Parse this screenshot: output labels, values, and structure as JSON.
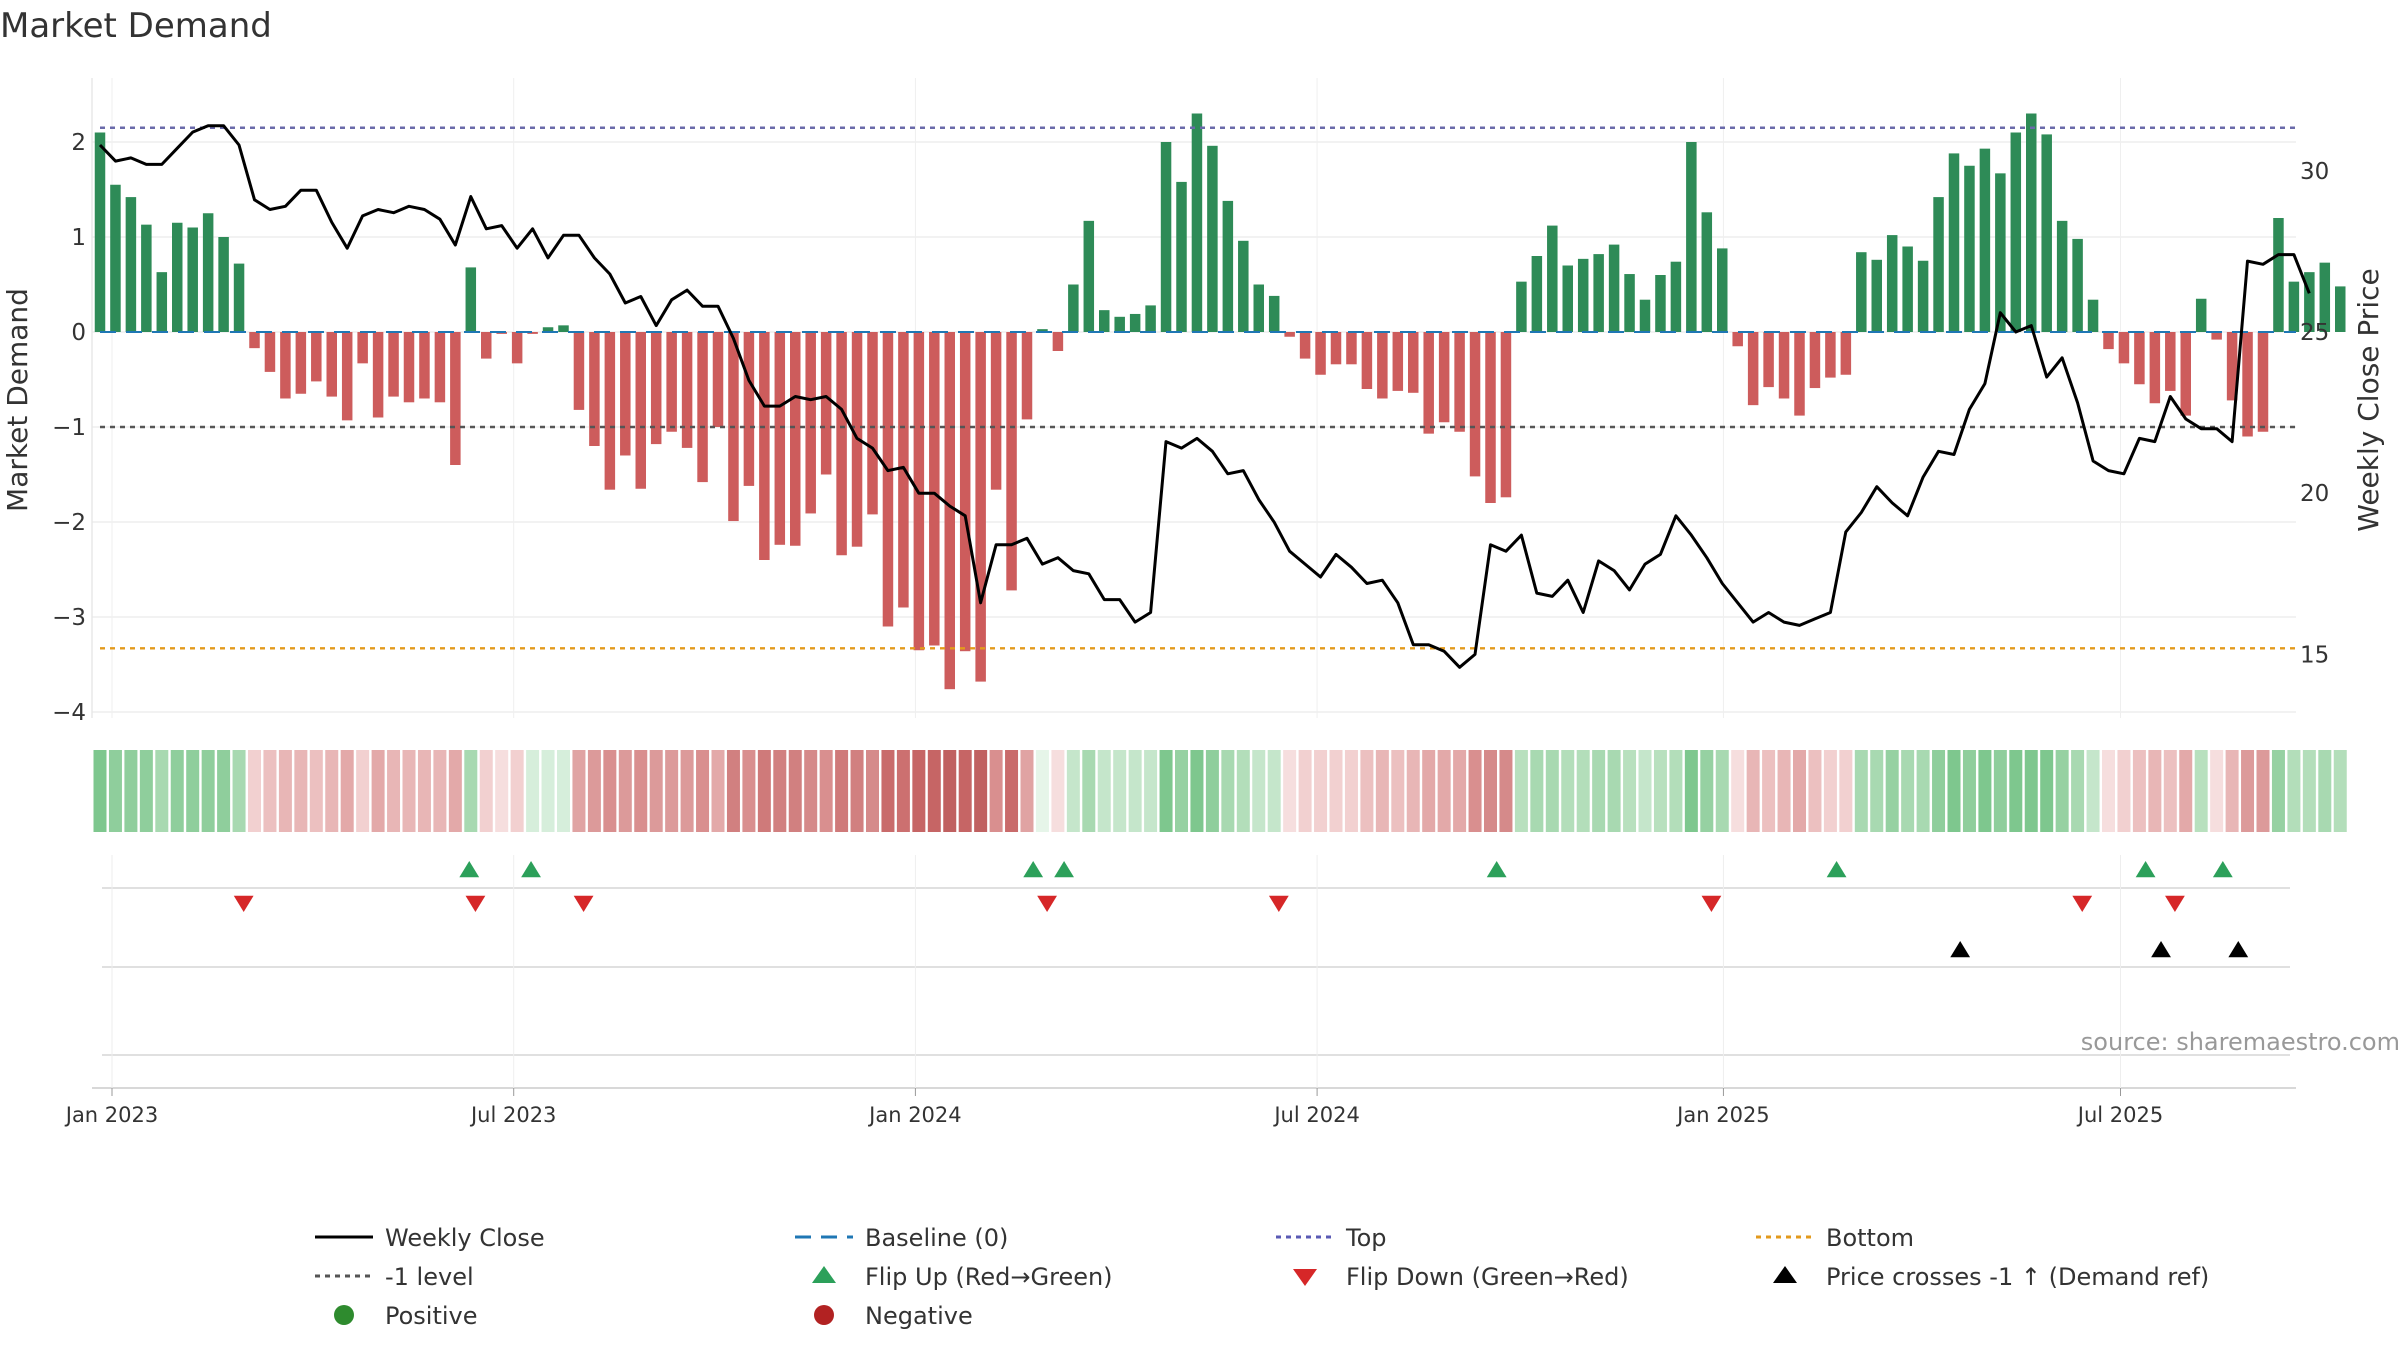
{
  "chart_data": {
    "type": "bar+line",
    "title": "Market Demand",
    "ylabel": "Market Demand",
    "y2label": "Weekly Close Price",
    "ylim": [
      -4.2,
      2.55
    ],
    "y2lim": [
      13.2,
      32.8
    ],
    "yticks": [
      {
        "v": 2,
        "label": "2"
      },
      {
        "v": 1,
        "label": "1"
      },
      {
        "v": 0,
        "label": "0"
      },
      {
        "v": -1,
        "label": "−1"
      },
      {
        "v": -2,
        "label": "−2"
      },
      {
        "v": -3,
        "label": "−3"
      },
      {
        "v": -4,
        "label": "−4"
      }
    ],
    "y2ticks": [
      {
        "v": 30,
        "label": "30"
      },
      {
        "v": 25,
        "label": "25"
      },
      {
        "v": 20,
        "label": "20"
      },
      {
        "v": 15,
        "label": "15"
      }
    ],
    "xticks": [
      {
        "week": 0,
        "label": "Jan 2023"
      },
      {
        "week": 26,
        "label": "Jul 2023"
      },
      {
        "week": 52,
        "label": "Jan 2024"
      },
      {
        "week": 78,
        "label": "Jul 2024"
      },
      {
        "week": 104.3,
        "label": "Jan 2025"
      },
      {
        "week": 130,
        "label": "Jul 2025"
      }
    ],
    "reference_lines": {
      "baseline": 0,
      "minus_one_level": -1,
      "top": 2.15,
      "bottom": -3.33
    },
    "demand": [
      2.1,
      1.55,
      1.42,
      1.13,
      0.63,
      1.15,
      1.1,
      1.25,
      1.0,
      0.72,
      -0.17,
      -0.42,
      -0.7,
      -0.65,
      -0.52,
      -0.68,
      -0.93,
      -0.33,
      -0.9,
      -0.68,
      -0.74,
      -0.7,
      -0.74,
      -1.4,
      0.68,
      -0.28,
      -0.02,
      -0.33,
      -0.02,
      0.05,
      0.07,
      -0.82,
      -1.2,
      -1.66,
      -1.3,
      -1.65,
      -1.18,
      -1.05,
      -1.22,
      -1.58,
      -1.0,
      -1.99,
      -1.62,
      -2.4,
      -2.24,
      -2.25,
      -1.91,
      -1.5,
      -2.35,
      -2.26,
      -1.92,
      -3.1,
      -2.9,
      -3.35,
      -3.3,
      -3.76,
      -3.36,
      -3.68,
      -1.66,
      -2.72,
      -0.92,
      0.03,
      -0.2,
      0.5,
      1.17,
      0.23,
      0.16,
      0.19,
      0.28,
      2.0,
      1.58,
      2.3,
      1.96,
      1.38,
      0.96,
      0.5,
      0.38,
      -0.05,
      -0.28,
      -0.45,
      -0.34,
      -0.34,
      -0.6,
      -0.7,
      -0.62,
      -0.64,
      -1.07,
      -0.95,
      -1.05,
      -1.52,
      -1.8,
      -1.74,
      0.53,
      0.8,
      1.12,
      0.7,
      0.77,
      0.82,
      0.92,
      0.61,
      0.34,
      0.6,
      0.74,
      2.0,
      1.26,
      0.88,
      -0.15,
      -0.77,
      -0.58,
      -0.7,
      -0.88,
      -0.59,
      -0.48,
      -0.45,
      0.84,
      0.76,
      1.02,
      0.9,
      0.75,
      1.42,
      1.88,
      1.75,
      1.93,
      1.67,
      2.1,
      2.3,
      2.08,
      1.17,
      0.98,
      0.34,
      -0.18,
      -0.33,
      -0.55,
      -0.75,
      -0.62,
      -0.88,
      0.35,
      -0.08,
      -0.72,
      -1.1,
      -1.05,
      1.2,
      0.53,
      0.63,
      0.73,
      0.48
    ],
    "price_series": [
      30.8,
      30.3,
      30.4,
      30.2,
      30.2,
      30.7,
      31.2,
      31.4,
      31.4,
      30.8,
      29.1,
      28.8,
      28.9,
      29.4,
      29.4,
      28.4,
      27.6,
      28.6,
      28.8,
      28.7,
      28.9,
      28.8,
      28.5,
      27.7,
      29.2,
      28.2,
      28.3,
      27.6,
      28.2,
      27.3,
      28.0,
      28.0,
      27.3,
      26.8,
      25.9,
      26.1,
      25.2,
      26.0,
      26.3,
      25.8,
      25.8,
      24.8,
      23.5,
      22.7,
      22.7,
      23.0,
      22.9,
      23.0,
      22.6,
      21.7,
      21.4,
      20.7,
      20.8,
      20.0,
      20.0,
      19.6,
      19.3,
      16.6,
      18.4,
      18.4,
      18.6,
      17.8,
      18.0,
      17.6,
      17.5,
      16.7,
      16.7,
      16.0,
      16.3,
      21.6,
      21.4,
      21.7,
      21.3,
      20.6,
      20.7,
      19.8,
      19.1,
      18.2,
      17.8,
      17.4,
      18.1,
      17.7,
      17.2,
      17.3,
      16.6,
      15.3,
      15.3,
      15.1,
      14.6,
      15.0,
      18.4,
      18.2,
      18.7,
      16.9,
      16.8,
      17.3,
      16.3,
      17.9,
      17.6,
      17.0,
      17.8,
      18.1,
      19.3,
      18.7,
      18.0,
      17.2,
      16.6,
      16.0,
      16.3,
      16.0,
      15.9,
      16.1,
      16.3,
      18.8,
      19.4,
      20.2,
      19.7,
      19.3,
      20.5,
      21.3,
      21.2,
      22.6,
      23.4,
      25.6,
      25.0,
      25.2,
      23.6,
      24.2,
      22.8,
      21.0,
      20.7,
      20.6,
      21.7,
      21.6,
      23.0,
      22.3,
      22.0,
      22.0,
      21.6,
      27.2,
      27.1,
      27.4,
      27.4,
      26.2
    ],
    "strip_colors": [
      "#7ec78e",
      "#8fce9c",
      "#8fce9c",
      "#8fce9c",
      "#a8d9b1",
      "#8fce9c",
      "#8fce9c",
      "#8fce9c",
      "#8fce9c",
      "#a8d9b1",
      "#f2d0d0",
      "#ecc0c0",
      "#e8b6b6",
      "#e8b6b6",
      "#ecc0c0",
      "#e8b6b6",
      "#e3a9a9",
      "#f2d0d0",
      "#e3a9a9",
      "#e8b6b6",
      "#e8b6b6",
      "#e8b6b6",
      "#e8b6b6",
      "#e3a9a9",
      "#a8d9b1",
      "#f2d0d0",
      "#f6dede",
      "#f2d0d0",
      "#d6eedb",
      "#d6eedb",
      "#d6eedb",
      "#e0a3a3",
      "#dc9a9a",
      "#d98f8f",
      "#dc9a9a",
      "#d98f8f",
      "#dc9a9a",
      "#dc9a9a",
      "#dc9a9a",
      "#d98f8f",
      "#e3a9a9",
      "#d18080",
      "#d98f8f",
      "#cf7a7a",
      "#d18080",
      "#d18080",
      "#d58a8a",
      "#d98f8f",
      "#cf7a7a",
      "#d18080",
      "#d58a8a",
      "#c96b6b",
      "#cc7070",
      "#c66565",
      "#c66565",
      "#c06060",
      "#c66565",
      "#c06060",
      "#d98f8f",
      "#c96b6b",
      "#e0a3a3",
      "#e6f5e9",
      "#f6dede",
      "#c5e6cb",
      "#a8d9b1",
      "#c5e6cb",
      "#c5e6cb",
      "#c5e6cb",
      "#c5e6cb",
      "#7ec78e",
      "#96d1a2",
      "#7ec78e",
      "#8fce9c",
      "#a8d9b1",
      "#b3deba",
      "#c5e6cb",
      "#c5e6cb",
      "#f6dede",
      "#f2d0d0",
      "#f2d0d0",
      "#f2d0d0",
      "#f2d0d0",
      "#ecc0c0",
      "#e8b6b6",
      "#ecc0c0",
      "#e8b6b6",
      "#e3a9a9",
      "#e3a9a9",
      "#e3a9a9",
      "#d98f8f",
      "#d58a8a",
      "#d58a8a",
      "#b8e0be",
      "#a8d9b1",
      "#a8d9b1",
      "#b3deba",
      "#b3deba",
      "#a8d9b1",
      "#a8d9b1",
      "#b8e0be",
      "#c5e6cb",
      "#b8e0be",
      "#b3deba",
      "#7ec78e",
      "#96d1a2",
      "#a8d9b1",
      "#f6dede",
      "#e8b6b6",
      "#ecc0c0",
      "#e8b6b6",
      "#e3a9a9",
      "#ecc0c0",
      "#f2d0d0",
      "#f2d0d0",
      "#a8d9b1",
      "#a8d9b1",
      "#96d1a2",
      "#a8d9b1",
      "#a8d9b1",
      "#8fce9c",
      "#7ec78e",
      "#8fce9c",
      "#7ec78e",
      "#8fce9c",
      "#7ec78e",
      "#7ec78e",
      "#7ec78e",
      "#96d1a2",
      "#a8d9b1",
      "#c5e6cb",
      "#f6dede",
      "#f2d0d0",
      "#ecc0c0",
      "#e8b6b6",
      "#ecc0c0",
      "#e3a9a9",
      "#b8e0be",
      "#f6dede",
      "#e8b6b6",
      "#dc9a9a",
      "#dc9a9a",
      "#96d1a2",
      "#b3deba",
      "#b3deba",
      "#a8d9b1",
      "#b3deba"
    ],
    "flip_up_weeks": [
      23.9,
      27.9,
      60.4,
      62.4,
      90.4,
      112.4,
      132.4,
      137.4
    ],
    "flip_down_weeks": [
      9.3,
      24.3,
      31.3,
      61.3,
      76.3,
      104.3,
      128.3,
      134.3
    ],
    "price_cross_weeks": [
      120.4,
      133.4,
      138.4
    ],
    "legend": [
      {
        "label": "Weekly Close",
        "kind": "line-solid",
        "color": "#000000"
      },
      {
        "label": "Baseline (0)",
        "kind": "line-dash",
        "color": "#1f77b4"
      },
      {
        "label": "Top",
        "kind": "line-dot",
        "color": "#5a5ab4"
      },
      {
        "label": "Bottom",
        "kind": "line-dot",
        "color": "#e39a1c"
      },
      {
        "label": "-1 level",
        "kind": "line-dot",
        "color": "#555555"
      },
      {
        "label": "Flip Up (Red→Green)",
        "kind": "tri-up",
        "color": "#2ca05a"
      },
      {
        "label": "Flip Down (Green→Red)",
        "kind": "tri-down",
        "color": "#d62728"
      },
      {
        "label": "Price crosses -1 ↑ (Demand ref)",
        "kind": "tri-up",
        "color": "#000000"
      },
      {
        "label": "Positive",
        "kind": "dot",
        "color": "#2e8b2e"
      },
      {
        "label": "Negative",
        "kind": "dot",
        "color": "#b22222"
      }
    ],
    "source": "source: sharemaestro.com"
  },
  "colors": {
    "positive_bar": "#2e8b57",
    "negative_bar": "#cd5c5c",
    "price_line": "#000000",
    "grid": "#e6e6e6"
  }
}
